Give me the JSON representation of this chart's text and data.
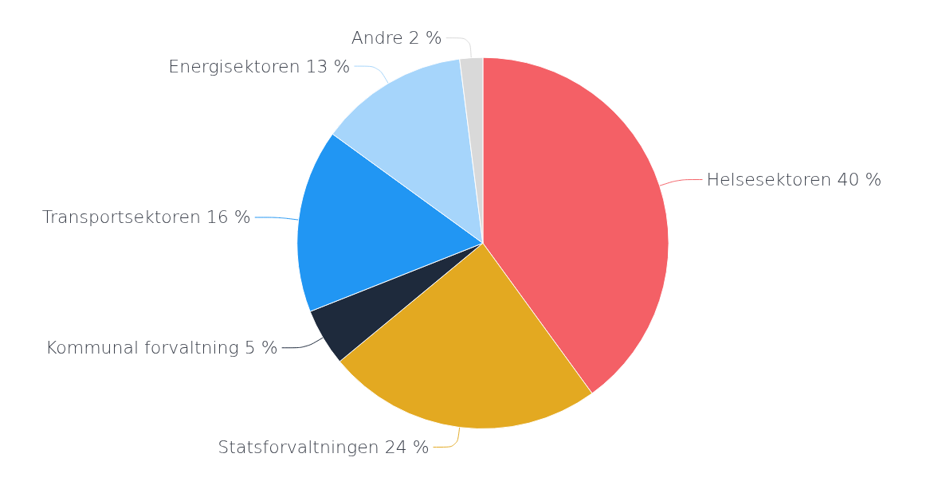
{
  "chart_data": {
    "type": "pie",
    "categories": [
      "Helsesektoren",
      "Statsforvaltningen",
      "Kommunal forvaltning",
      "Transportsektoren",
      "Energisektoren",
      "Andre"
    ],
    "values": [
      40,
      24,
      5,
      16,
      13,
      2
    ],
    "value_labels": [
      "40 %",
      "24 %",
      "5 %",
      "16 %",
      "13 %",
      "2 %"
    ],
    "colors": [
      "#f46066",
      "#e3a921",
      "#1e2a3c",
      "#2196f3",
      "#a6d5fb",
      "#d9d9d9"
    ],
    "legend": false
  }
}
